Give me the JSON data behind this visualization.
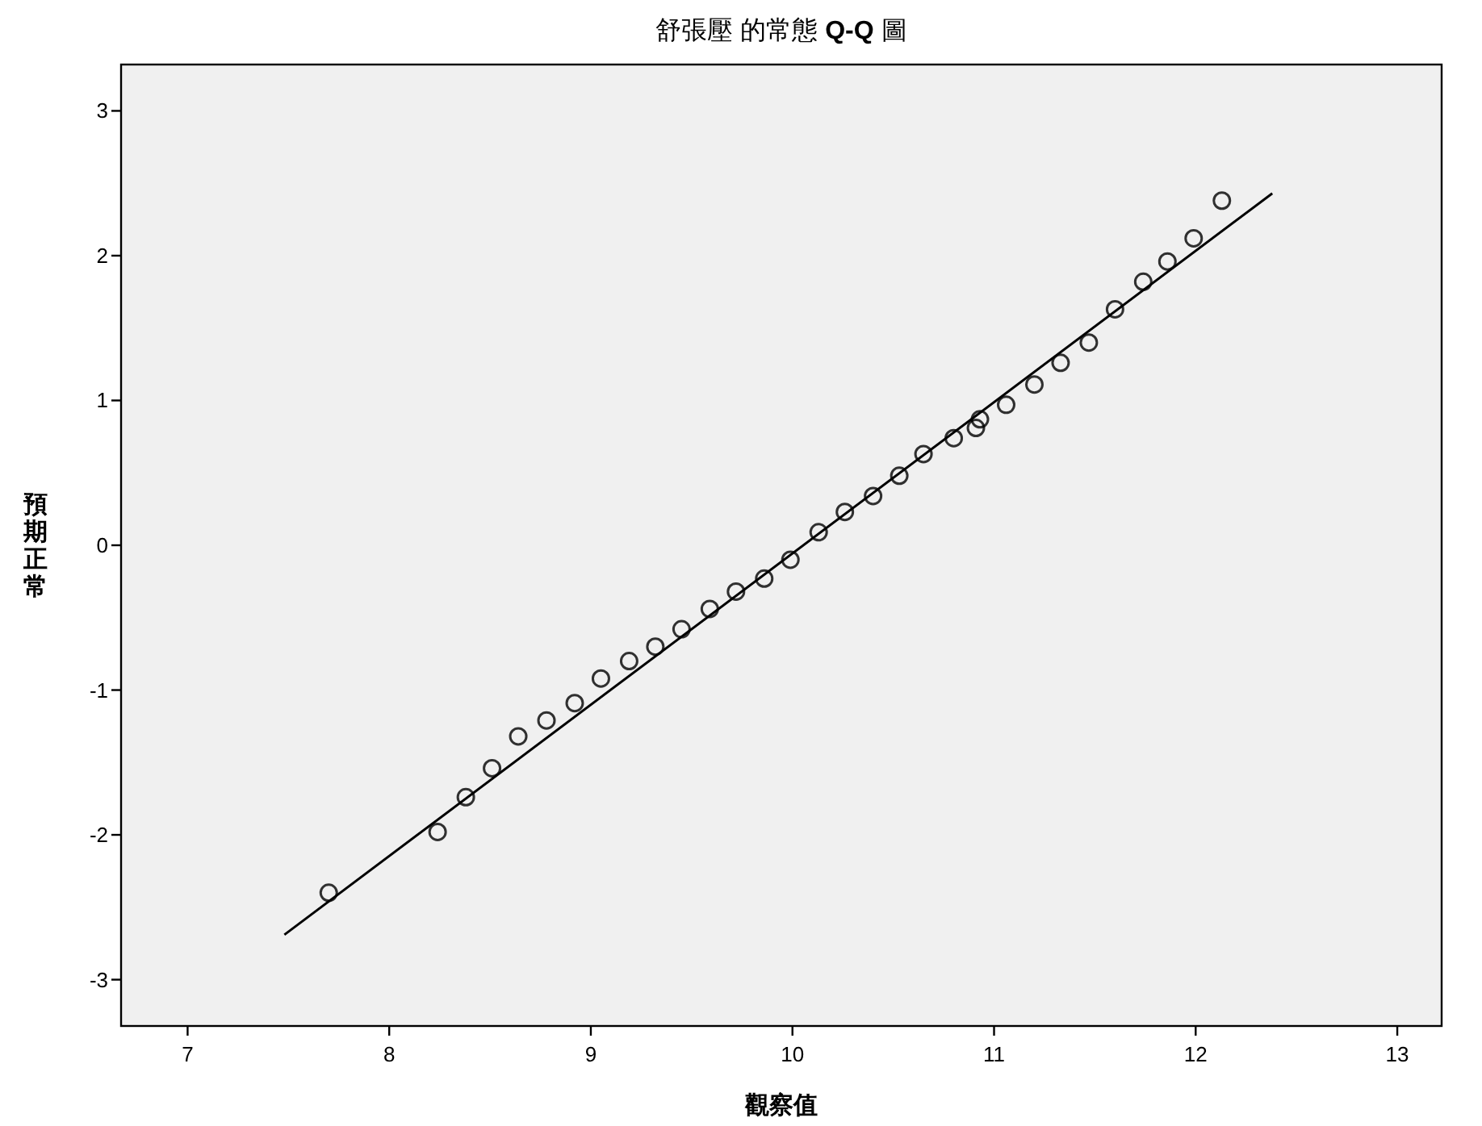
{
  "chart_data": {
    "type": "scatter",
    "title": "舒張壓 的常態 **Q-Q** 圖",
    "xlabel": "觀察值",
    "ylabel": "預期正常",
    "xlim": [
      6.67,
      13.22
    ],
    "ylim": [
      -3.32,
      3.32
    ],
    "xticks": [
      7,
      8,
      9,
      10,
      11,
      12,
      13
    ],
    "yticks": [
      -3,
      -2,
      -1,
      0,
      1,
      2,
      3
    ],
    "series": [
      {
        "marker": "circle",
        "color": "#000000",
        "x": [
          7.7,
          8.24,
          8.38,
          8.51,
          8.64,
          8.78,
          8.92,
          9.05,
          9.19,
          9.32,
          9.45,
          9.59,
          9.72,
          9.86,
          9.99,
          10.13,
          10.26,
          10.4,
          10.53,
          10.65,
          10.8,
          10.91,
          10.93,
          11.06,
          11.2,
          11.33,
          11.47,
          11.6,
          11.74,
          11.86,
          11.99,
          12.13
        ],
        "values": [
          -2.4,
          -1.98,
          -1.74,
          -1.54,
          -1.32,
          -1.21,
          -1.09,
          -0.92,
          -0.8,
          -0.7,
          -0.58,
          -0.44,
          -0.32,
          -0.23,
          -0.1,
          0.09,
          0.23,
          0.34,
          0.48,
          0.63,
          0.74,
          0.81,
          0.87,
          0.97,
          1.11,
          1.26,
          1.4,
          1.63,
          1.82,
          1.96,
          2.12,
          2.38
        ]
      },
      {
        "type": "line",
        "marker": "none",
        "color": "#000000",
        "x": [
          7.48,
          12.38
        ],
        "values": [
          -2.69,
          2.43
        ]
      }
    ]
  }
}
